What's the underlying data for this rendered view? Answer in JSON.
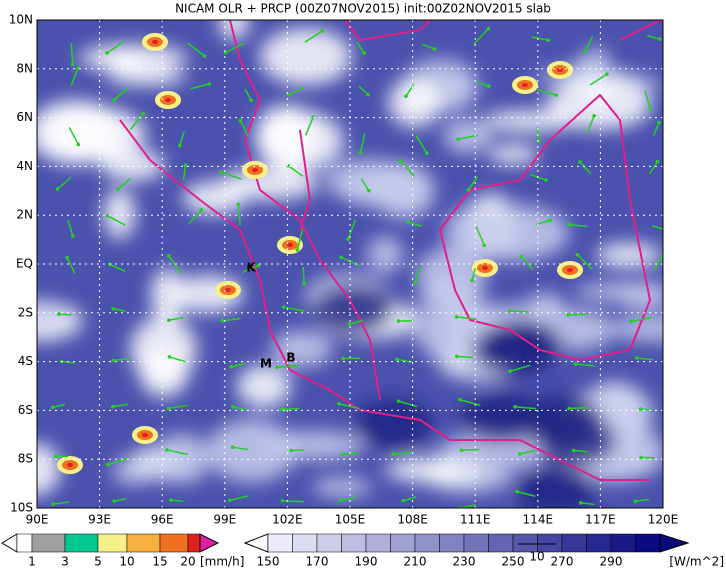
{
  "title": "NICAM OLR + PRCP (00Z07NOV2015) init:00Z02NOV2015 slab",
  "lat_labels": [
    "10N",
    "8N",
    "6N",
    "4N",
    "2N",
    "EQ",
    "2S",
    "4S",
    "6S",
    "8S",
    "10S"
  ],
  "lon_labels": [
    "90E",
    "93E",
    "96E",
    "99E",
    "102E",
    "105E",
    "108E",
    "111E",
    "114E",
    "117E",
    "120E"
  ],
  "places": [
    "K",
    "M",
    "B"
  ],
  "vector_reference": "10",
  "precip_colorbar": {
    "labels": [
      "1",
      "3",
      "5",
      "10",
      "15",
      "20"
    ],
    "unit": "[mm/h]"
  },
  "olr_colorbar": {
    "labels": [
      "150",
      "170",
      "190",
      "210",
      "230",
      "250",
      "270",
      "290"
    ],
    "unit": "[W/m^2]"
  }
}
